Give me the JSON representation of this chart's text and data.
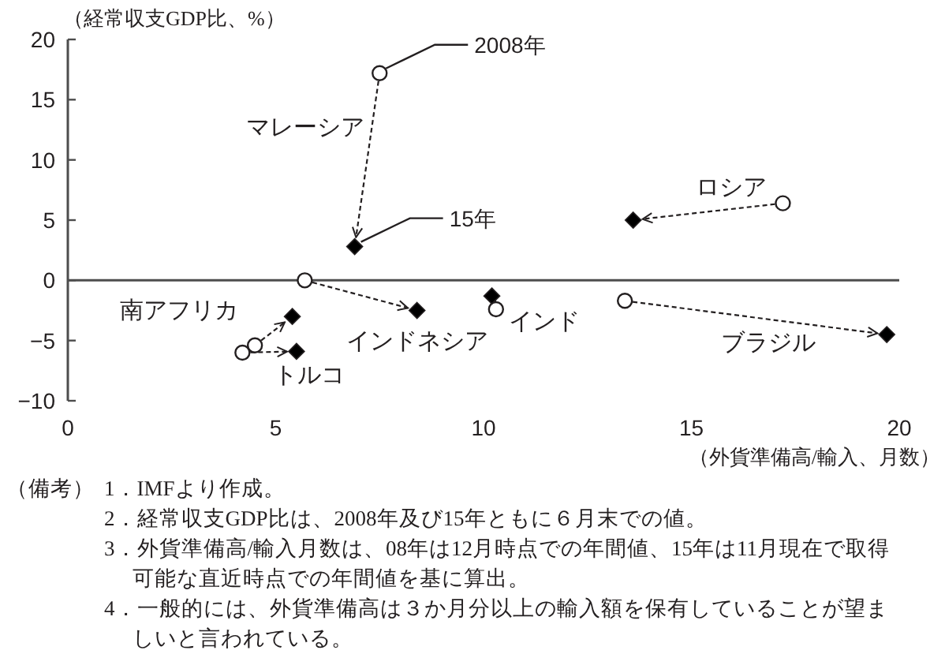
{
  "chart_data": {
    "type": "scatter",
    "ylabel": "（経常収支GDP比、%）",
    "xlabel": "（外貨準備高/輸入、月数）",
    "xlim": [
      0,
      20
    ],
    "xticks": [
      0,
      5,
      10,
      15,
      20
    ],
    "ylim": [
      -10,
      20
    ],
    "yticks": [
      -10,
      -5,
      0,
      5,
      10,
      15,
      20
    ],
    "legend": "top",
    "series": [
      {
        "name": "2008年",
        "color": "#ffffff",
        "marker": "circle",
        "x": [
          7.5,
          5.7,
          4.5,
          4.2,
          10.3,
          17.2,
          13.4
        ],
        "values": [
          17.2,
          0,
          -5.4,
          -6.0,
          -2.4,
          6.4,
          -1.7
        ]
      },
      {
        "name": "15年",
        "color": "#000000",
        "marker": "diamond",
        "x": [
          6.9,
          8.4,
          5.4,
          5.5,
          10.2,
          13.6,
          19.7
        ],
        "values": [
          2.8,
          -2.5,
          -3.0,
          -5.9,
          -1.3,
          5.0,
          -4.5
        ]
      }
    ],
    "annotations": [
      {
        "text": "マレーシア",
        "x": 7.5,
        "y": 17.2
      },
      {
        "text": "インドネシア",
        "x": 8.4,
        "y": -2.5
      },
      {
        "text": "南アフリカ",
        "x": 5.4,
        "y": -3.0
      },
      {
        "text": "トルコ",
        "x": 5.5,
        "y": -5.9
      },
      {
        "text": "インド",
        "x": 10.2,
        "y": -1.3
      },
      {
        "text": "ロシア",
        "x": 13.6,
        "y": 5.0
      },
      {
        "text": "ブラジル",
        "x": 19.7,
        "y": -4.5
      },
      "（備考）",
      "1．IMFより作成。",
      "2．経常収支GDP比は、2008年及び15年ともに６月末での値。",
      "3．外貨準備高/輸入月数は、08年は12月時点での年間値、15年は11月現在で取得可能な直近時点での年間値を基に算出。",
      "4．一般的には、外貨準備高は３か月分以上の輸入額を保有していることが望ましいと言われている。"
    ]
  }
}
